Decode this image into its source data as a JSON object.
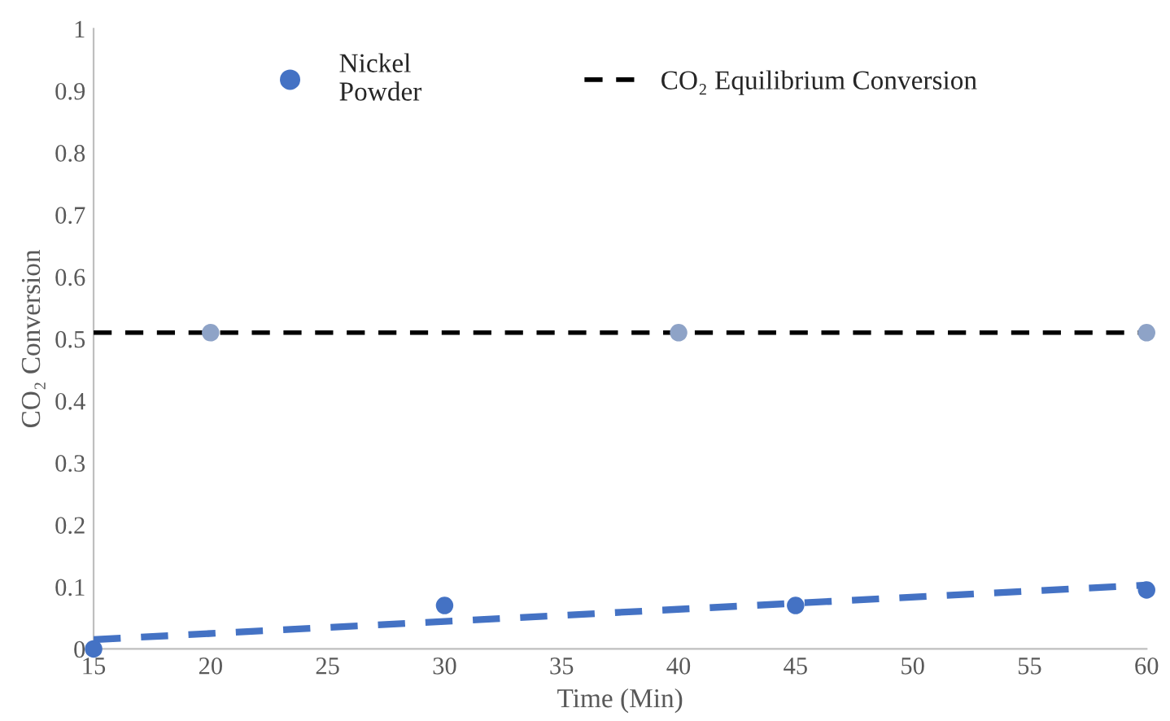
{
  "chart_data": {
    "type": "scatter",
    "xlabel": "Time (Min)",
    "ylabel": "CO₂ Conversion",
    "xlim": [
      15,
      60
    ],
    "xticks": [
      15,
      20,
      25,
      30,
      35,
      40,
      45,
      50,
      55,
      60
    ],
    "ylim": [
      0,
      1
    ],
    "yticks": [
      0,
      0.1,
      0.2,
      0.3,
      0.4,
      0.5,
      0.6,
      0.7,
      0.8,
      0.9,
      1
    ],
    "grid": false,
    "legend": "top",
    "marker": "circle",
    "series": [
      {
        "name": "Nickel\nPowder",
        "color": "#4472c4",
        "x": [
          15,
          30,
          45,
          60
        ],
        "values": [
          0,
          0.07,
          0.07,
          0.095
        ]
      },
      {
        "type": "line",
        "color": "#4472c4",
        "line_style": "dashed",
        "marker": "none",
        "x": [
          15,
          60
        ],
        "values": [
          0.015,
          0.103
        ]
      },
      {
        "name": "CO₂ Equilibrium Conversion",
        "type": "line",
        "color": "#000000",
        "line_style": "dashed",
        "marker": "none",
        "x": [
          15,
          60
        ],
        "values": [
          0.51,
          0.51
        ]
      },
      {
        "color": "#8ea3c7",
        "x": [
          20,
          40,
          60
        ],
        "values": [
          0.51,
          0.51,
          0.51
        ]
      }
    ]
  }
}
